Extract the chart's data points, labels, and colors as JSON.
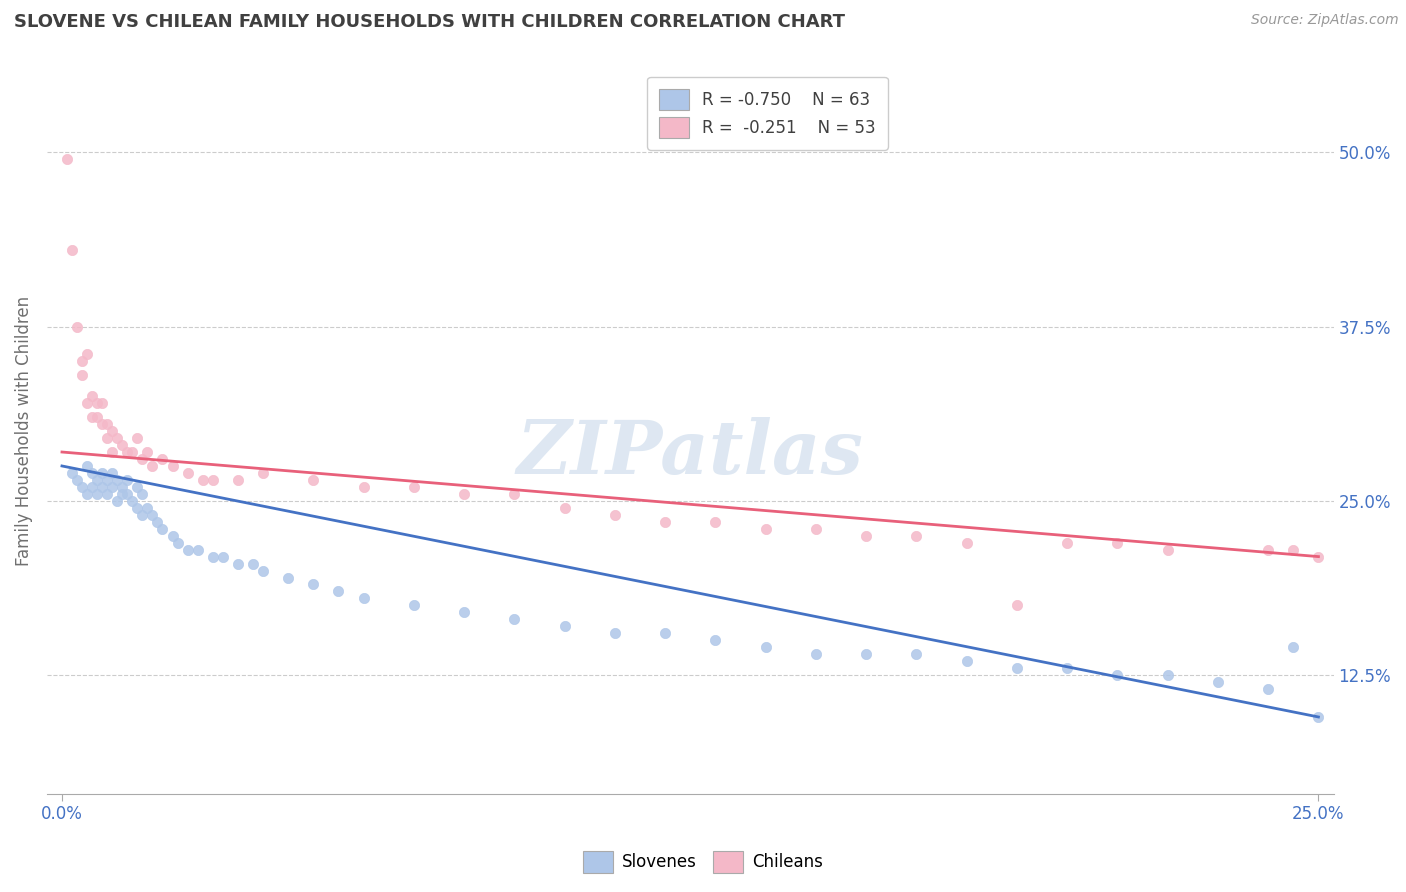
{
  "title": "SLOVENE VS CHILEAN FAMILY HOUSEHOLDS WITH CHILDREN CORRELATION CHART",
  "source": "Source: ZipAtlas.com",
  "ylabel": "Family Households with Children",
  "yticks": [
    "12.5%",
    "25.0%",
    "37.5%",
    "50.0%"
  ],
  "ytick_vals": [
    0.125,
    0.25,
    0.375,
    0.5
  ],
  "ylim": [
    0.04,
    0.56
  ],
  "xlim": [
    -0.003,
    0.253
  ],
  "watermark": "ZIPatlas",
  "legend_label_s": "R = -0.750    N = 63",
  "legend_label_c": "R =  -0.251    N = 53",
  "slovene_color": "#aec6e8",
  "chilean_color": "#f4b8c8",
  "slovene_line_color": "#4472c4",
  "chilean_line_color": "#e8607a",
  "background_color": "#ffffff",
  "grid_color": "#cccccc",
  "title_color": "#404040",
  "axis_label_color": "#4472c4",
  "slovene_x": [
    0.002,
    0.003,
    0.004,
    0.005,
    0.005,
    0.006,
    0.006,
    0.007,
    0.007,
    0.008,
    0.008,
    0.009,
    0.009,
    0.01,
    0.01,
    0.011,
    0.011,
    0.012,
    0.012,
    0.013,
    0.013,
    0.014,
    0.015,
    0.015,
    0.016,
    0.016,
    0.017,
    0.018,
    0.019,
    0.02,
    0.022,
    0.023,
    0.025,
    0.027,
    0.03,
    0.032,
    0.035,
    0.038,
    0.04,
    0.045,
    0.05,
    0.055,
    0.06,
    0.07,
    0.08,
    0.09,
    0.1,
    0.11,
    0.12,
    0.13,
    0.14,
    0.15,
    0.16,
    0.17,
    0.18,
    0.19,
    0.2,
    0.21,
    0.22,
    0.23,
    0.24,
    0.245,
    0.25
  ],
  "slovene_y": [
    0.27,
    0.265,
    0.26,
    0.275,
    0.255,
    0.27,
    0.26,
    0.265,
    0.255,
    0.27,
    0.26,
    0.265,
    0.255,
    0.26,
    0.27,
    0.265,
    0.25,
    0.26,
    0.255,
    0.265,
    0.255,
    0.25,
    0.26,
    0.245,
    0.255,
    0.24,
    0.245,
    0.24,
    0.235,
    0.23,
    0.225,
    0.22,
    0.215,
    0.215,
    0.21,
    0.21,
    0.205,
    0.205,
    0.2,
    0.195,
    0.19,
    0.185,
    0.18,
    0.175,
    0.17,
    0.165,
    0.16,
    0.155,
    0.155,
    0.15,
    0.145,
    0.14,
    0.14,
    0.14,
    0.135,
    0.13,
    0.13,
    0.125,
    0.125,
    0.12,
    0.115,
    0.145,
    0.095
  ],
  "chilean_x": [
    0.001,
    0.002,
    0.003,
    0.004,
    0.004,
    0.005,
    0.005,
    0.006,
    0.006,
    0.007,
    0.007,
    0.008,
    0.008,
    0.009,
    0.009,
    0.01,
    0.01,
    0.011,
    0.012,
    0.013,
    0.014,
    0.015,
    0.016,
    0.017,
    0.018,
    0.02,
    0.022,
    0.025,
    0.028,
    0.03,
    0.035,
    0.04,
    0.05,
    0.06,
    0.07,
    0.08,
    0.09,
    0.1,
    0.11,
    0.12,
    0.13,
    0.14,
    0.15,
    0.16,
    0.17,
    0.18,
    0.19,
    0.2,
    0.21,
    0.22,
    0.24,
    0.245,
    0.25
  ],
  "chilean_y": [
    0.495,
    0.43,
    0.375,
    0.35,
    0.34,
    0.355,
    0.32,
    0.325,
    0.31,
    0.32,
    0.31,
    0.305,
    0.32,
    0.305,
    0.295,
    0.3,
    0.285,
    0.295,
    0.29,
    0.285,
    0.285,
    0.295,
    0.28,
    0.285,
    0.275,
    0.28,
    0.275,
    0.27,
    0.265,
    0.265,
    0.265,
    0.27,
    0.265,
    0.26,
    0.26,
    0.255,
    0.255,
    0.245,
    0.24,
    0.235,
    0.235,
    0.23,
    0.23,
    0.225,
    0.225,
    0.22,
    0.175,
    0.22,
    0.22,
    0.215,
    0.215,
    0.215,
    0.21
  ],
  "slovene_line_x0": 0.0,
  "slovene_line_y0": 0.275,
  "slovene_line_x1": 0.25,
  "slovene_line_y1": 0.095,
  "chilean_line_x0": 0.0,
  "chilean_line_y0": 0.285,
  "chilean_line_x1": 0.25,
  "chilean_line_y1": 0.21
}
